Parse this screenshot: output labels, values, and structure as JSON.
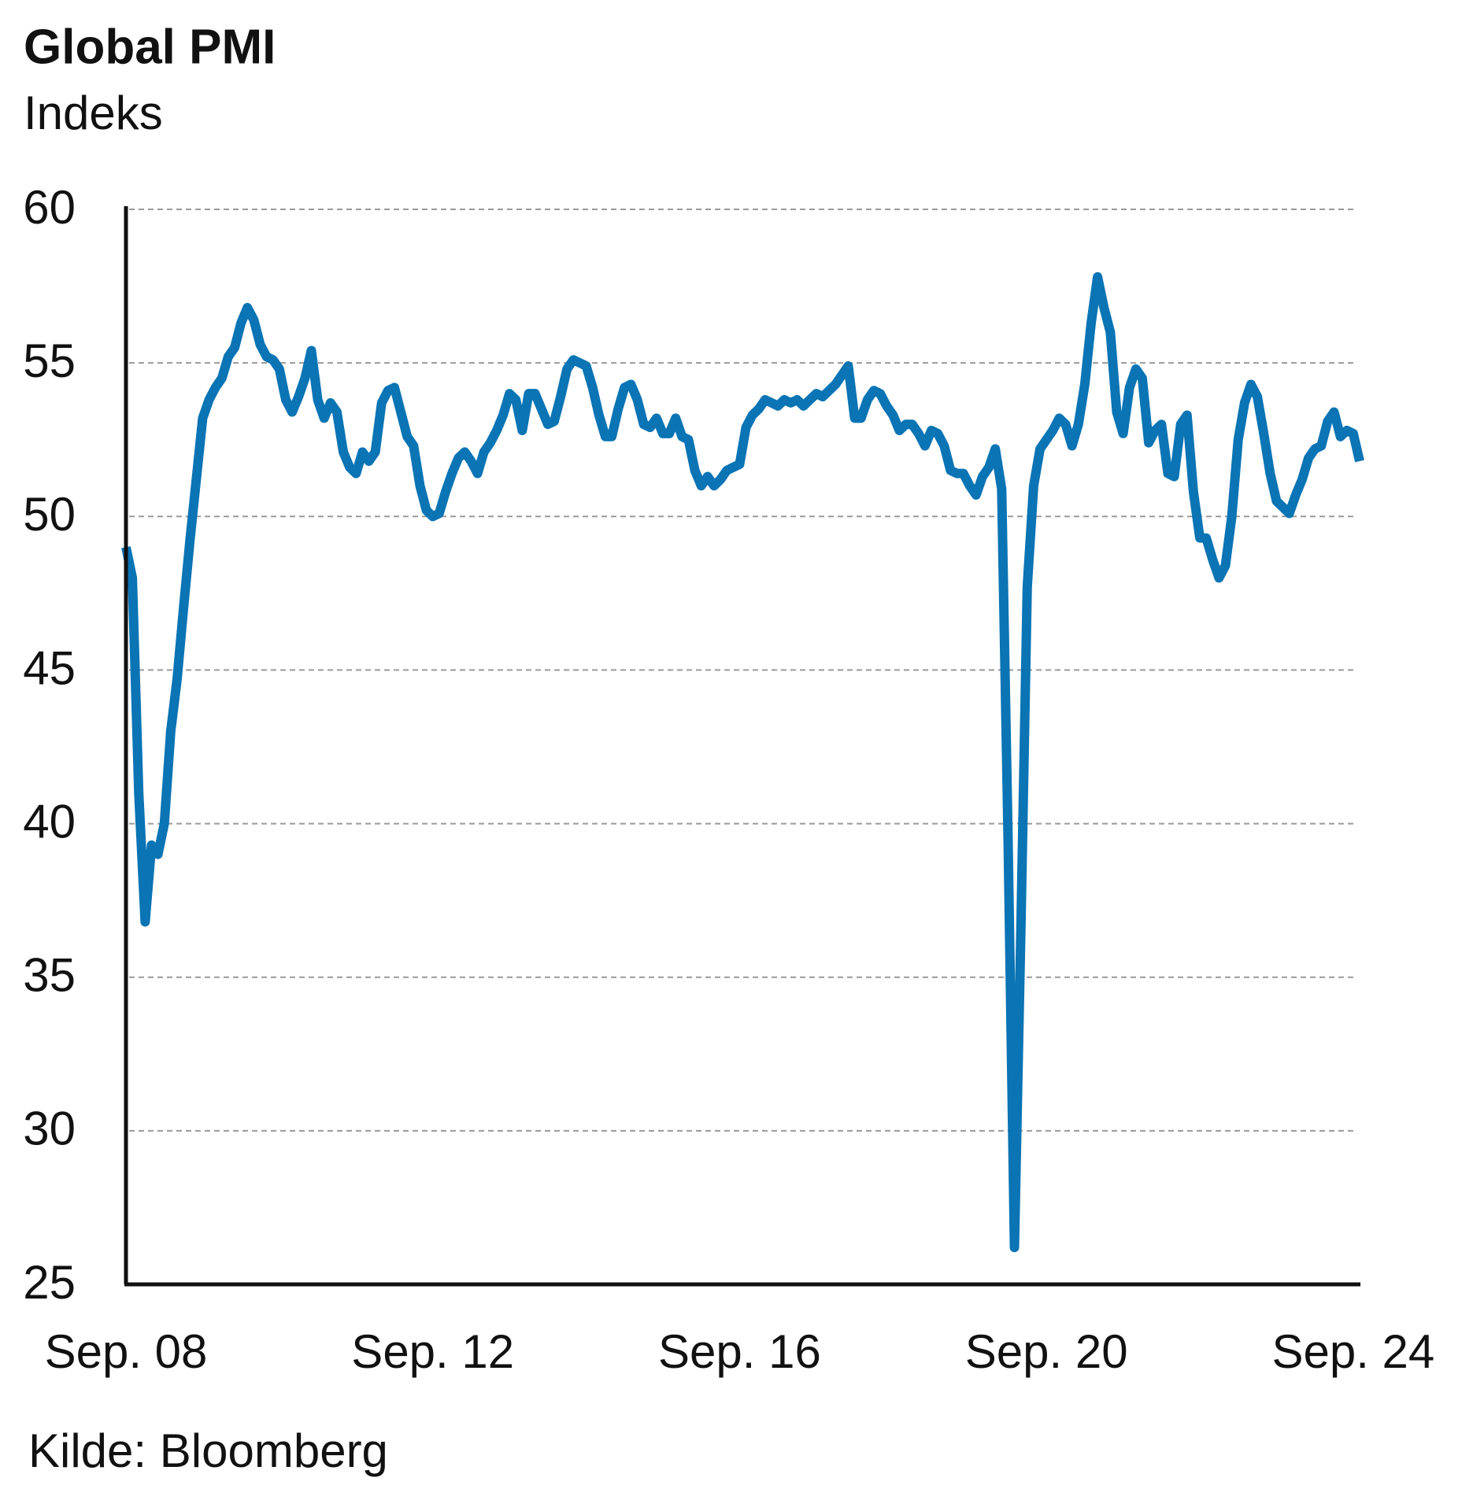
{
  "chart_data": {
    "type": "line",
    "title": "Global PMI",
    "subtitle": "Indeks",
    "source": "Kilde: Bloomberg",
    "categories": [
      "Sep. 08",
      null,
      null,
      null,
      null,
      null,
      null,
      null,
      null,
      null,
      null,
      null,
      null,
      null,
      null,
      null,
      null,
      null,
      null,
      null,
      null,
      null,
      null,
      null,
      null,
      null,
      null,
      null,
      null,
      null,
      null,
      null,
      null,
      null,
      null,
      null,
      null,
      null,
      null,
      null,
      null,
      null,
      null,
      null,
      null,
      null,
      null,
      null,
      "Sep. 12",
      null,
      null,
      null,
      null,
      null,
      null,
      null,
      null,
      null,
      null,
      null,
      null,
      null,
      null,
      null,
      null,
      null,
      null,
      null,
      null,
      null,
      null,
      null,
      null,
      null,
      null,
      null,
      null,
      null,
      null,
      null,
      null,
      null,
      null,
      null,
      null,
      null,
      null,
      null,
      null,
      null,
      null,
      null,
      null,
      null,
      null,
      null,
      "Sep. 16",
      null,
      null,
      null,
      null,
      null,
      null,
      null,
      null,
      null,
      null,
      null,
      null,
      null,
      null,
      null,
      null,
      null,
      null,
      null,
      null,
      null,
      null,
      null,
      null,
      null,
      null,
      null,
      null,
      null,
      null,
      null,
      null,
      null,
      null,
      null,
      null,
      null,
      null,
      null,
      null,
      null,
      null,
      null,
      null,
      null,
      null,
      null,
      "Sep. 20",
      null,
      null,
      null,
      null,
      null,
      null,
      null,
      null,
      null,
      null,
      null,
      null,
      null,
      null,
      null,
      null,
      null,
      null,
      null,
      null,
      null,
      null,
      null,
      null,
      null,
      null,
      null,
      null,
      null,
      null,
      null,
      null,
      null,
      null,
      null,
      null,
      null,
      null,
      null,
      null,
      null,
      null,
      null,
      null,
      null,
      null,
      null,
      "Sep. 24",
      null
    ],
    "values": [
      49.0,
      48.0,
      41.0,
      36.8,
      39.3,
      39.0,
      40.0,
      43.0,
      44.7,
      47.0,
      49.2,
      51.2,
      53.2,
      53.8,
      54.2,
      54.5,
      55.2,
      55.5,
      56.3,
      56.8,
      56.4,
      55.6,
      55.2,
      55.1,
      54.8,
      53.8,
      53.4,
      53.9,
      54.5,
      55.4,
      53.8,
      53.2,
      53.7,
      53.4,
      52.1,
      51.6,
      51.4,
      52.1,
      51.8,
      52.1,
      53.7,
      54.1,
      54.2,
      53.4,
      52.6,
      52.3,
      51.0,
      50.2,
      50.0,
      50.1,
      50.8,
      51.4,
      51.9,
      52.1,
      51.8,
      51.4,
      52.1,
      52.4,
      52.8,
      53.3,
      54.0,
      53.8,
      52.8,
      54.0,
      54.0,
      53.5,
      53.0,
      53.1,
      53.9,
      54.8,
      55.1,
      55.0,
      54.9,
      54.2,
      53.3,
      52.6,
      52.6,
      53.5,
      54.2,
      54.3,
      53.8,
      53.0,
      52.9,
      53.2,
      52.7,
      52.7,
      53.2,
      52.6,
      52.5,
      51.5,
      51.0,
      51.3,
      51.0,
      51.2,
      51.5,
      51.6,
      51.7,
      52.9,
      53.3,
      53.5,
      53.8,
      53.7,
      53.6,
      53.8,
      53.7,
      53.8,
      53.6,
      53.8,
      54.0,
      53.9,
      54.1,
      54.3,
      54.6,
      54.9,
      53.2,
      53.2,
      53.8,
      54.1,
      54.0,
      53.6,
      53.3,
      52.8,
      53.0,
      53.0,
      52.7,
      52.3,
      52.8,
      52.7,
      52.3,
      51.5,
      51.4,
      51.4,
      51.0,
      50.7,
      51.3,
      51.6,
      52.2,
      50.9,
      39.5,
      26.2,
      36.5,
      47.7,
      51.0,
      52.2,
      52.5,
      52.8,
      53.2,
      53.0,
      52.3,
      53.0,
      54.3,
      56.3,
      57.8,
      56.8,
      56.0,
      53.4,
      52.7,
      54.2,
      54.8,
      54.5,
      52.4,
      52.8,
      53.0,
      51.4,
      51.3,
      53.0,
      53.3,
      50.8,
      49.3,
      49.3,
      48.6,
      48.0,
      48.4,
      50.0,
      52.5,
      53.7,
      54.3,
      53.9,
      52.7,
      51.4,
      50.5,
      50.3,
      50.1,
      50.7,
      51.2,
      51.9,
      52.2,
      52.3,
      53.1,
      53.4,
      52.6,
      52.8,
      52.7,
      51.8
    ],
    "color": "#0a74b4",
    "ylim": [
      25,
      60
    ],
    "yticks": [
      25,
      30,
      35,
      40,
      45,
      50,
      55,
      60
    ],
    "grid": true
  }
}
